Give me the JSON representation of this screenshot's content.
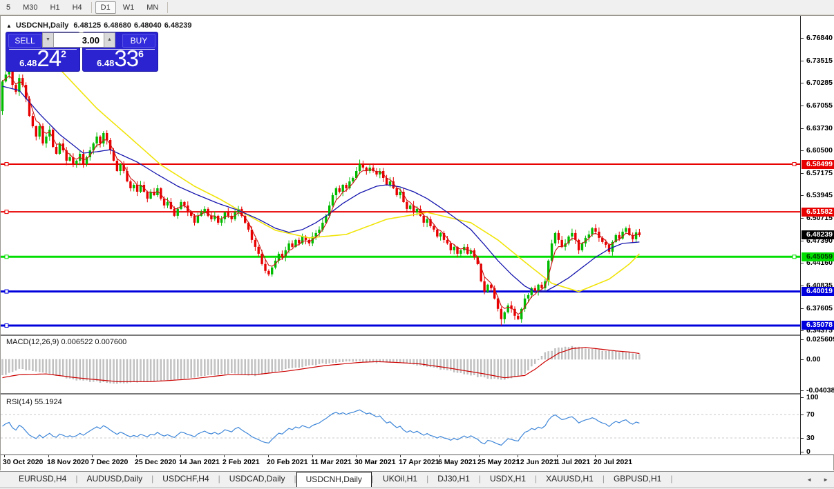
{
  "toolbar": {
    "timeframes": [
      "5",
      "M30",
      "H1",
      "H4",
      "D1",
      "W1",
      "MN"
    ],
    "active": "D1"
  },
  "window_title": {
    "symbol": "USDCNH,Daily",
    "o": "6.48125",
    "h": "6.48680",
    "l": "6.48040",
    "c": "6.48239"
  },
  "icons": {
    "title_arrow": "▲",
    "spinner_down": "▼",
    "spinner_up": "▲",
    "tab_scroll_left": "◄",
    "tab_scroll_right": "►"
  },
  "trade_panel": {
    "sell_label": "SELL",
    "buy_label": "BUY",
    "volume": "3.00",
    "bid": {
      "prefix": "6.48",
      "big": "24",
      "sup": "2"
    },
    "ask": {
      "prefix": "6.48",
      "big": "33",
      "sup": "6"
    }
  },
  "price_axis_ticks": [
    "6.76840",
    "6.73515",
    "6.70285",
    "6.67055",
    "6.63730",
    "6.60500",
    "6.57175",
    "6.53945",
    "6.50715",
    "6.47390",
    "6.44160",
    "6.40835",
    "6.37605",
    "6.34375"
  ],
  "levels": [
    {
      "price": 6.58499,
      "label": "6.58499",
      "color": "#e80000",
      "text": "#ffffff",
      "width": 2,
      "right_anchor": true
    },
    {
      "price": 6.51582,
      "label": "6.51582",
      "color": "#e80000",
      "text": "#ffffff",
      "width": 2,
      "right_anchor": false
    },
    {
      "price": 6.45059,
      "label": "6.45059",
      "color": "#00dd00",
      "text": "#003300",
      "width": 3,
      "right_anchor": true
    },
    {
      "price": 6.40019,
      "label": "6.40019",
      "color": "#0000dd",
      "text": "#ffffff",
      "width": 3,
      "right_anchor": false
    },
    {
      "price": 6.35078,
      "label": "6.35078",
      "color": "#0000dd",
      "text": "#ffffff",
      "width": 3,
      "right_anchor": false
    }
  ],
  "current_price_tag": {
    "label": "6.48239",
    "price": 6.48239,
    "bg": "#000000",
    "text": "#ffffff"
  },
  "macd_panel": {
    "label": "MACD(12,26,9) 0.006522 0.007600",
    "ticks": [
      {
        "v": 0.025609,
        "label": "0.025609"
      },
      {
        "v": 0,
        "label": "0.00"
      },
      {
        "v": -0.04038,
        "label": "-0.04038"
      }
    ]
  },
  "rsi_panel": {
    "label": "RSI(14) 55.1924",
    "ticks": [
      {
        "v": 100,
        "label": "100"
      },
      {
        "v": 70,
        "label": "70"
      },
      {
        "v": 30,
        "label": "30"
      },
      {
        "v": 0,
        "label": "0"
      }
    ],
    "guide_levels": [
      70,
      30
    ]
  },
  "date_axis": [
    "30 Oct 2020",
    "18 Nov 2020",
    "7 Dec 2020",
    "25 Dec 2020",
    "14 Jan 2021",
    "2 Feb 2021",
    "20 Feb 2021",
    "11 Mar 2021",
    "30 Mar 2021",
    "17 Apr 2021",
    "6 May 2021",
    "25 May 2021",
    "12 Jun 2021",
    "1 Jul 2021",
    "20 Jul 2021"
  ],
  "tabs": [
    "EURUSD,H4",
    "AUDUSD,Daily",
    "USDCHF,H4",
    "USDCAD,Daily",
    "USDCNH,Daily",
    "UKOil,H1",
    "DJ30,H1",
    "USDX,H1",
    "XAUUSD,H1",
    "GBPUSD,H1"
  ],
  "active_tab": "USDCNH,Daily",
  "chart_data": {
    "type": "candlestick",
    "symbol": "USDCNH",
    "timeframe": "Daily",
    "x_range": [
      "30 Oct 2020",
      "20 Jul 2021"
    ],
    "y_range": [
      6.339,
      6.8
    ],
    "closes": [
      6.705,
      6.715,
      6.72,
      6.7,
      6.69,
      6.71,
      6.7,
      6.68,
      6.655,
      6.64,
      6.625,
      6.64,
      6.615,
      6.625,
      6.635,
      6.61,
      6.6,
      6.615,
      6.605,
      6.59,
      6.595,
      6.585,
      6.59,
      6.6,
      6.585,
      6.595,
      6.605,
      6.615,
      6.625,
      6.615,
      6.63,
      6.62,
      6.605,
      6.59,
      6.575,
      6.585,
      6.575,
      6.56,
      6.55,
      6.555,
      6.545,
      6.555,
      6.545,
      6.535,
      6.545,
      6.54,
      6.55,
      6.535,
      6.525,
      6.53,
      6.52,
      6.51,
      6.52,
      6.53,
      6.525,
      6.515,
      6.51,
      6.5,
      6.51,
      6.515,
      6.52,
      6.51,
      6.505,
      6.51,
      6.5,
      6.505,
      6.515,
      6.51,
      6.505,
      6.515,
      6.52,
      6.51,
      6.5,
      6.49,
      6.475,
      6.465,
      6.455,
      6.44,
      6.43,
      6.425,
      6.435,
      6.445,
      6.455,
      6.45,
      6.46,
      6.47,
      6.465,
      6.475,
      6.47,
      6.48,
      6.475,
      6.47,
      6.48,
      6.485,
      6.49,
      6.5,
      6.51,
      6.525,
      6.54,
      6.55,
      6.545,
      6.555,
      6.55,
      6.56,
      6.565,
      6.575,
      6.585,
      6.58,
      6.575,
      6.58,
      6.575,
      6.57,
      6.575,
      6.565,
      6.555,
      6.56,
      6.55,
      6.54,
      6.545,
      6.53,
      6.52,
      6.525,
      6.515,
      6.52,
      6.51,
      6.5,
      6.505,
      6.495,
      6.49,
      6.48,
      6.485,
      6.475,
      6.47,
      6.46,
      6.465,
      6.455,
      6.46,
      6.465,
      6.455,
      6.46,
      6.45,
      6.44,
      6.415,
      6.4,
      6.41,
      6.405,
      6.39,
      6.375,
      6.36,
      6.37,
      6.38,
      6.375,
      6.365,
      6.36,
      6.375,
      6.39,
      6.395,
      6.405,
      6.4,
      6.41,
      6.405,
      6.415,
      6.445,
      6.47,
      6.485,
      6.475,
      6.465,
      6.47,
      6.48,
      6.485,
      6.475,
      6.46,
      6.47,
      6.478,
      6.483,
      6.492,
      6.487,
      6.478,
      6.472,
      6.468,
      6.458,
      6.472,
      6.482,
      6.477,
      6.487,
      6.492,
      6.482,
      6.476,
      6.486,
      6.482
    ],
    "ma_slow_yellow": [
      [
        14,
        6.738
      ],
      [
        17,
        6.723
      ],
      [
        28,
        6.666
      ],
      [
        38,
        6.623
      ],
      [
        47,
        6.584
      ],
      [
        57,
        6.553
      ],
      [
        65,
        6.533
      ],
      [
        72,
        6.513
      ],
      [
        81,
        6.489
      ],
      [
        91,
        6.478
      ],
      [
        102,
        6.483
      ],
      [
        114,
        6.505
      ],
      [
        126,
        6.515
      ],
      [
        139,
        6.5
      ],
      [
        147,
        6.475
      ],
      [
        155,
        6.443
      ],
      [
        163,
        6.412
      ],
      [
        171,
        6.4
      ],
      [
        180,
        6.418
      ],
      [
        186,
        6.44
      ],
      [
        189,
        6.455
      ]
    ],
    "ma_mid_blue": [
      [
        0,
        6.698
      ],
      [
        5,
        6.692
      ],
      [
        11,
        6.658
      ],
      [
        17,
        6.628
      ],
      [
        24,
        6.601
      ],
      [
        28,
        6.603
      ],
      [
        32,
        6.606
      ],
      [
        40,
        6.588
      ],
      [
        46,
        6.57
      ],
      [
        52,
        6.553
      ],
      [
        58,
        6.54
      ],
      [
        64,
        6.528
      ],
      [
        70,
        6.518
      ],
      [
        76,
        6.505
      ],
      [
        81,
        6.492
      ],
      [
        85,
        6.486
      ],
      [
        89,
        6.49
      ],
      [
        93,
        6.5
      ],
      [
        97,
        6.513
      ],
      [
        101,
        6.528
      ],
      [
        106,
        6.543
      ],
      [
        111,
        6.553
      ],
      [
        114,
        6.555
      ],
      [
        118,
        6.552
      ],
      [
        122,
        6.545
      ],
      [
        126,
        6.535
      ],
      [
        130,
        6.522
      ],
      [
        134,
        6.508
      ],
      [
        139,
        6.49
      ],
      [
        143,
        6.468
      ],
      [
        147,
        6.445
      ],
      [
        151,
        6.425
      ],
      [
        155,
        6.408
      ],
      [
        158,
        6.4
      ],
      [
        161,
        6.4
      ],
      [
        164,
        6.408
      ],
      [
        168,
        6.42
      ],
      [
        172,
        6.435
      ],
      [
        176,
        6.45
      ],
      [
        180,
        6.462
      ],
      [
        184,
        6.47
      ],
      [
        189,
        6.472
      ]
    ],
    "ma_fast_red": {
      "type": "ema",
      "period": 4
    },
    "macd_main_waypoints": [
      [
        0,
        -0.021
      ],
      [
        1,
        -0.02
      ],
      [
        5,
        -0.012
      ],
      [
        13,
        -0.018
      ],
      [
        22,
        -0.027
      ],
      [
        34,
        -0.031
      ],
      [
        44,
        -0.029
      ],
      [
        55,
        -0.024
      ],
      [
        67,
        -0.018
      ],
      [
        75,
        -0.021
      ],
      [
        85,
        -0.012
      ],
      [
        96,
        -0.005
      ],
      [
        106,
        -0.002
      ],
      [
        111,
        -0.004
      ],
      [
        117,
        -0.003
      ],
      [
        124,
        -0.008
      ],
      [
        132,
        -0.014
      ],
      [
        143,
        -0.024
      ],
      [
        149,
        -0.027
      ],
      [
        155,
        -0.018
      ],
      [
        158,
        -0.005
      ],
      [
        161,
        0.008
      ],
      [
        165,
        0.015
      ],
      [
        169,
        0.017
      ],
      [
        173,
        0.014
      ],
      [
        178,
        0.011
      ],
      [
        182,
        0.01
      ],
      [
        186,
        0.009
      ],
      [
        189,
        0.0065
      ]
    ],
    "macd_signal_waypoints": [
      [
        0,
        -0.024
      ],
      [
        1,
        -0.023
      ],
      [
        5,
        -0.02
      ],
      [
        13,
        -0.019
      ],
      [
        22,
        -0.024
      ],
      [
        34,
        -0.029
      ],
      [
        44,
        -0.029
      ],
      [
        55,
        -0.026
      ],
      [
        67,
        -0.02
      ],
      [
        75,
        -0.02
      ],
      [
        85,
        -0.015
      ],
      [
        96,
        -0.008
      ],
      [
        106,
        -0.004
      ],
      [
        111,
        -0.003
      ],
      [
        117,
        -0.004
      ],
      [
        124,
        -0.006
      ],
      [
        132,
        -0.011
      ],
      [
        143,
        -0.019
      ],
      [
        149,
        -0.024
      ],
      [
        155,
        -0.021
      ],
      [
        158,
        -0.013
      ],
      [
        161,
        -0.003
      ],
      [
        165,
        0.008
      ],
      [
        169,
        0.014
      ],
      [
        173,
        0.0155
      ],
      [
        178,
        0.013
      ],
      [
        182,
        0.011
      ],
      [
        186,
        0.0095
      ],
      [
        189,
        0.0076
      ]
    ],
    "indicators": {
      "macd": {
        "params": [
          12,
          26,
          9
        ],
        "current_main": 0.006522,
        "current_signal": 0.0076
      },
      "rsi": {
        "params": [
          14
        ],
        "current": 55.1924
      }
    },
    "colors": {
      "up": "#00bb00",
      "down": "#e80000",
      "ma_slow": "#f0e40a",
      "ma_mid": "#1515ae",
      "ma_fast": "#cc1111",
      "macd_hist": "#c6c6c6",
      "macd_signal": "#cc0000",
      "rsi_line": "#3e86d8",
      "rsi_guide": "#c8c8c8"
    }
  }
}
